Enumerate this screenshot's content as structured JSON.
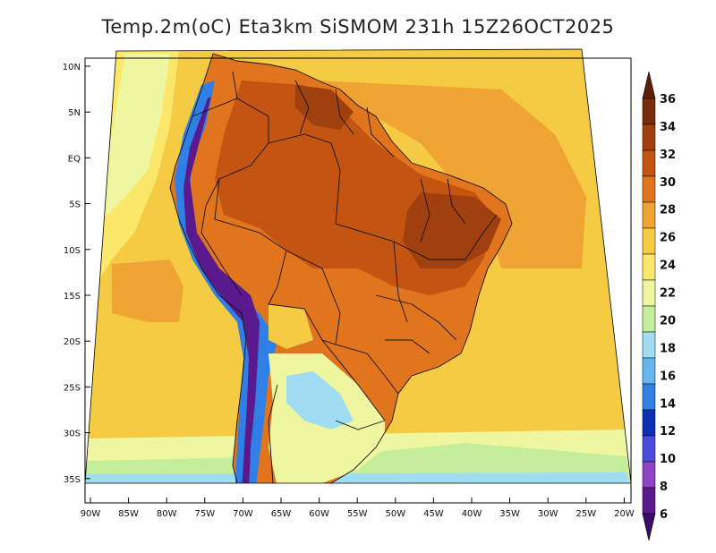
{
  "title": "Temp.2m(oC) Eta3km SiSMOM 231h 15Z26OCT2025",
  "lat_labels": [
    "10N",
    "5N",
    "EQ",
    "5S",
    "10S",
    "15S",
    "20S",
    "25S",
    "30S",
    "35S"
  ],
  "lon_labels": [
    "90W",
    "85W",
    "80W",
    "75W",
    "70W",
    "65W",
    "60W",
    "55W",
    "50W",
    "45W",
    "40W",
    "35W",
    "30W",
    "25W",
    "20W"
  ],
  "colorbar": {
    "labels": [
      "36",
      "34",
      "32",
      "30",
      "28",
      "26",
      "24",
      "22",
      "20",
      "18",
      "16",
      "14",
      "12",
      "10",
      "8",
      "6"
    ],
    "colors": [
      "#7a2d0e",
      "#a1400f",
      "#c35412",
      "#e0751e",
      "#f0a433",
      "#f6cb44",
      "#fbe86b",
      "#eef7a0",
      "#c4ee9a",
      "#a0dcf2",
      "#66b7f0",
      "#2f7fe6",
      "#0c2fb4",
      "#4c4cdc",
      "#8e44c4",
      "#5a1a8e"
    ],
    "top_arrow_color": "#5e1f08",
    "bottom_arrow_color": "#3c0c6a"
  },
  "field_colors": {
    "ocean_warm": "#f6cb44",
    "ocean_mid": "#fbe86b",
    "ocean_cool": "#eef7a0",
    "ocean_cold": "#c4ee9a",
    "ocean_colder": "#a0dcf2",
    "ocean_coldest": "#66b7f0",
    "ocean_orange": "#f0a433",
    "land_hot": "#e0751e",
    "land_hotter": "#c35412",
    "land_hottest": "#a1400f",
    "andes_blue": "#2f7fe6",
    "andes_purple": "#5a1a8e",
    "southern_land": "#eef7a0",
    "southern_cool": "#a0dcf2"
  }
}
